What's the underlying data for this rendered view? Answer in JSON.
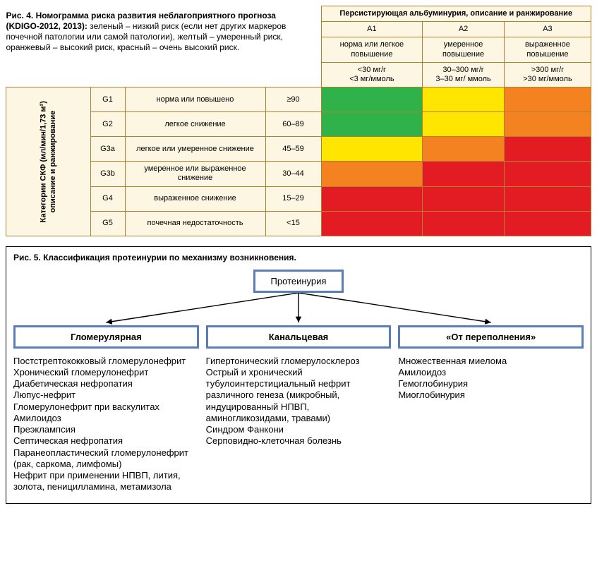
{
  "colors": {
    "green": "#2fb24a",
    "yellow": "#ffe600",
    "orange": "#f58220",
    "red": "#e31b23",
    "cell_bg": "#fdf6e3",
    "cell_border": "#b08030",
    "node_border": "#5a7db8"
  },
  "fig4": {
    "caption_bold": "Рис. 4. Номограмма риска развития неблагоприятного прогноза (KDIGO-2012, 2013):",
    "caption_rest": " зеленый – низкий риск (если нет других маркеров почечной патологии или самой патологии), желтый – умеренный риск, оранжевый – высокий риск, красный – очень высокий риск.",
    "top_header": "Персистирующая альбуминурия, описание и ранжирование",
    "a_cols": [
      "A1",
      "A2",
      "A3"
    ],
    "a_desc": [
      "норма или легкое повышение",
      "умеренное повышение",
      "выраженное повышение"
    ],
    "a_vals": [
      "<30 мг/г\n<3 мг/ммоль",
      "30–300 мг/г\n3–30 мг/ ммоль",
      ">300 мг/г\n>30 мг/ммоль"
    ],
    "side_header_l1": "Категории СКФ (мл/мин/1,73 м²)",
    "side_header_l2": "описание и ранжирование",
    "rows": [
      {
        "code": "G1",
        "desc": "норма или повышено",
        "val": "≥90",
        "risk": [
          "green",
          "yellow",
          "orange"
        ]
      },
      {
        "code": "G2",
        "desc": "легкое снижение",
        "val": "60–89",
        "risk": [
          "green",
          "yellow",
          "orange"
        ]
      },
      {
        "code": "G3a",
        "desc": "легкое или умеренное снижение",
        "val": "45–59",
        "risk": [
          "yellow",
          "orange",
          "red"
        ]
      },
      {
        "code": "G3b",
        "desc": "умеренное или выраженное снижение",
        "val": "30–44",
        "risk": [
          "orange",
          "red",
          "red"
        ]
      },
      {
        "code": "G4",
        "desc": "выраженное снижение",
        "val": "15–29",
        "risk": [
          "red",
          "red",
          "red"
        ]
      },
      {
        "code": "G5",
        "desc": "почечная недостаточность",
        "val": "<15",
        "risk": [
          "red",
          "red",
          "red"
        ]
      }
    ]
  },
  "fig5": {
    "title": "Рис. 5. Классификация протеинурии по механизму возникновения.",
    "root": "Протеинурия",
    "branches": [
      {
        "label": "Гломерулярная",
        "items": [
          "Постстрептококковый гломерулонефрит",
          "Хронический гломерулонефрит",
          "Диабетическая нефропатия",
          "Люпус-нефрит",
          "Гломерулонефрит при васкулитах",
          "Амилоидоз",
          "Преэклампсия",
          "Септическая нефропатия",
          "Паранеопластический гломерулонефрит (рак, саркома, лимфомы)",
          "Нефрит при применении НПВП, лития, золота, пеницилламина, метамизола"
        ]
      },
      {
        "label": "Канальцевая",
        "items": [
          "Гипертонический гломерулосклероз",
          "Острый и хронический тубулоинтерстициальный нефрит различного генеза (микробный, индуцированный НПВП, аминогликозидами, травами)",
          "Синдром Фанкони",
          "Серповидно-клеточная болезнь"
        ]
      },
      {
        "label": "«От переполнения»",
        "items": [
          "Множественная миелома",
          "Амилоидоз",
          "Гемоглобинурия",
          "Миоглобинурия"
        ]
      }
    ]
  }
}
